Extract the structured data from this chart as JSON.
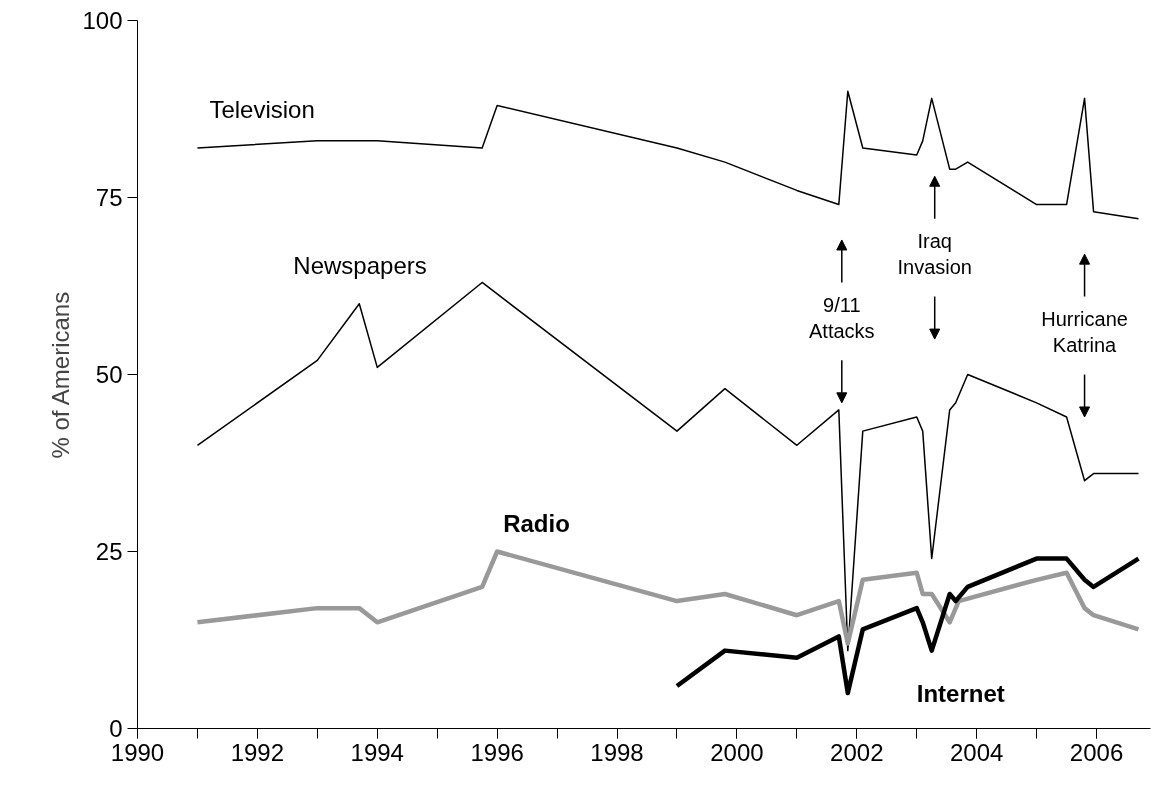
{
  "chart_data": {
    "type": "line",
    "ylabel": "% of Americans",
    "xlim": [
      1990,
      2006.9
    ],
    "ylim": [
      0,
      100
    ],
    "xticks": [
      1990,
      1992,
      1994,
      1996,
      1998,
      2000,
      2002,
      2004,
      2006
    ],
    "yticks": [
      0,
      25,
      50,
      75,
      100
    ],
    "grid": false,
    "legend": false,
    "marker": "none",
    "line_style": "solid",
    "series": [
      {
        "name": "Television",
        "color": "#000000",
        "x": [
          1991.0,
          1993.0,
          1994.0,
          1995.75,
          1996.0,
          1999.0,
          1999.8,
          2001.0,
          2001.7,
          2001.85,
          2002.1,
          2003.0,
          2003.1,
          2003.25,
          2003.55,
          2003.65,
          2003.85,
          2005.0,
          2005.5,
          2005.8,
          2005.95,
          2006.7
        ],
        "values": [
          82,
          83,
          83,
          82,
          88,
          82,
          80,
          76,
          74,
          90,
          82,
          81,
          83,
          89,
          79,
          79,
          80,
          74,
          74,
          89,
          73,
          72
        ]
      },
      {
        "name": "Newspapers",
        "color": "#000000",
        "x": [
          1991.0,
          1993.0,
          1993.7,
          1994.0,
          1995.75,
          1999.0,
          1999.8,
          2001.0,
          2001.7,
          2001.85,
          2002.1,
          2003.0,
          2003.1,
          2003.25,
          2003.55,
          2003.65,
          2003.85,
          2005.0,
          2005.5,
          2005.8,
          2005.95,
          2006.7
        ],
        "values": [
          40,
          52,
          60,
          51,
          63,
          42,
          48,
          40,
          45,
          11,
          42,
          44,
          42,
          24,
          45,
          46,
          50,
          46,
          44,
          35,
          36,
          36
        ]
      },
      {
        "name": "Radio",
        "color": "#999999",
        "x": [
          1991.0,
          1993.0,
          1993.7,
          1994.0,
          1995.75,
          1996.0,
          1999.0,
          1999.8,
          2001.0,
          2001.7,
          2001.85,
          2002.1,
          2003.0,
          2003.1,
          2003.25,
          2003.55,
          2003.7,
          2005.0,
          2005.5,
          2005.8,
          2005.95,
          2006.7
        ],
        "values": [
          15,
          17,
          17,
          15,
          20,
          25,
          18,
          19,
          16,
          18,
          12,
          21,
          22,
          19,
          19,
          15,
          18,
          21,
          22,
          17,
          16,
          14
        ]
      },
      {
        "name": "Internet",
        "color": "#000000",
        "x": [
          1999.0,
          1999.8,
          2001.0,
          2001.7,
          2001.85,
          2002.1,
          2003.0,
          2003.1,
          2003.25,
          2003.55,
          2003.65,
          2003.85,
          2005.0,
          2005.5,
          2005.8,
          2005.95,
          2006.7
        ],
        "values": [
          6,
          11,
          10,
          13,
          5,
          14,
          17,
          15,
          11,
          19,
          18,
          20,
          24,
          24,
          21,
          20,
          24
        ]
      }
    ],
    "annotations": [
      "9/11\nAttacks",
      "Iraq\nInvasion",
      "Hurricane\nKatrina"
    ]
  }
}
